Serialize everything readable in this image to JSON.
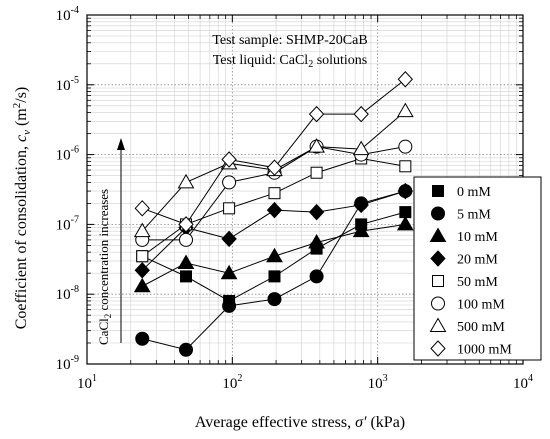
{
  "chart_data": {
    "type": "line",
    "xscale": "log",
    "yscale": "log",
    "xlim": [
      10,
      10000
    ],
    "ylim": [
      1e-09,
      0.0001
    ],
    "grid": true,
    "legend_placement": "right",
    "xlabel_main": "Average effective stress, ",
    "xlabel_symbol": "σ′",
    "xlabel_unit": " (kPa)",
    "ylabel_main": "Coefficient of consolidation, ",
    "ylabel_symbol": "c",
    "ylabel_sub": "v",
    "ylabel_unit": " (m",
    "ylabel_unit_sup": "2",
    "ylabel_unit_end": "/s)",
    "annotation_sample": "Test sample: SHMP-20CaB",
    "annotation_liquid_pre": "Test liquid: CaCl",
    "annotation_liquid_sub": "2",
    "annotation_liquid_post": " solutions",
    "arrow_label_pre": "CaCl",
    "arrow_label_sub": "2",
    "arrow_label_post": " concentration increases",
    "x_ticks": [
      {
        "value": 10,
        "base": "10",
        "exp": "1"
      },
      {
        "value": 100,
        "base": "10",
        "exp": "2"
      },
      {
        "value": 1000,
        "base": "10",
        "exp": "3"
      },
      {
        "value": 10000,
        "base": "10",
        "exp": "4"
      }
    ],
    "y_ticks": [
      {
        "value": 1e-09,
        "base": "10",
        "exp": "-9"
      },
      {
        "value": 1e-08,
        "base": "10",
        "exp": "-8"
      },
      {
        "value": 1e-07,
        "base": "10",
        "exp": "-7"
      },
      {
        "value": 1e-06,
        "base": "10",
        "exp": "-6"
      },
      {
        "value": 1e-05,
        "base": "10",
        "exp": "-5"
      },
      {
        "value": 0.0001,
        "base": "10",
        "exp": "-4"
      }
    ],
    "series": [
      {
        "name": "0 mM",
        "marker": "square",
        "filled": true,
        "x": [
          24,
          48,
          95,
          195,
          380,
          770,
          1550
        ],
        "y": [
          3.5e-08,
          1.8e-08,
          8e-09,
          1.8e-08,
          4.5e-08,
          1e-07,
          1.5e-07
        ]
      },
      {
        "name": "5 mM",
        "marker": "circle",
        "filled": true,
        "x": [
          24,
          48,
          95,
          195,
          380,
          770,
          1550
        ],
        "y": [
          2.3e-09,
          1.6e-09,
          6.8e-09,
          8.5e-09,
          1.8e-08,
          2e-07,
          3e-07
        ]
      },
      {
        "name": "10 mM",
        "marker": "triangle",
        "filled": true,
        "x": [
          24,
          48,
          95,
          195,
          380,
          770,
          1550
        ],
        "y": [
          1.3e-08,
          2.8e-08,
          2e-08,
          3.5e-08,
          5.5e-08,
          8e-08,
          1e-07
        ]
      },
      {
        "name": "20 mM",
        "marker": "diamond",
        "filled": true,
        "x": [
          24,
          48,
          95,
          195,
          380,
          770,
          1550
        ],
        "y": [
          2.2e-08,
          9e-08,
          6.2e-08,
          1.6e-07,
          1.5e-07,
          1.9e-07,
          3e-07
        ]
      },
      {
        "name": "50 mM",
        "marker": "square",
        "filled": false,
        "x": [
          24,
          48,
          95,
          195,
          380,
          770,
          1550
        ],
        "y": [
          3.5e-08,
          1e-07,
          1.7e-07,
          2.8e-07,
          5.5e-07,
          8.8e-07,
          6.8e-07
        ]
      },
      {
        "name": "100 mM",
        "marker": "circle",
        "filled": false,
        "x": [
          24,
          48,
          95,
          195,
          380,
          770,
          1550
        ],
        "y": [
          6e-08,
          6e-08,
          4e-07,
          5.5e-07,
          1.3e-06,
          1e-06,
          1.3e-06
        ]
      },
      {
        "name": "500 mM",
        "marker": "triangle",
        "filled": false,
        "x": [
          24,
          48,
          95,
          195,
          380,
          770,
          1550
        ],
        "y": [
          8e-08,
          4e-07,
          7.5e-07,
          6e-07,
          1.3e-06,
          1.2e-06,
          4.2e-06
        ]
      },
      {
        "name": "1000 mM",
        "marker": "diamond",
        "filled": false,
        "x": [
          24,
          48,
          95,
          195,
          380,
          770,
          1550
        ],
        "y": [
          1.7e-07,
          1e-07,
          8.5e-07,
          6.5e-07,
          3.8e-06,
          3.8e-06,
          1.2e-05
        ]
      }
    ]
  }
}
